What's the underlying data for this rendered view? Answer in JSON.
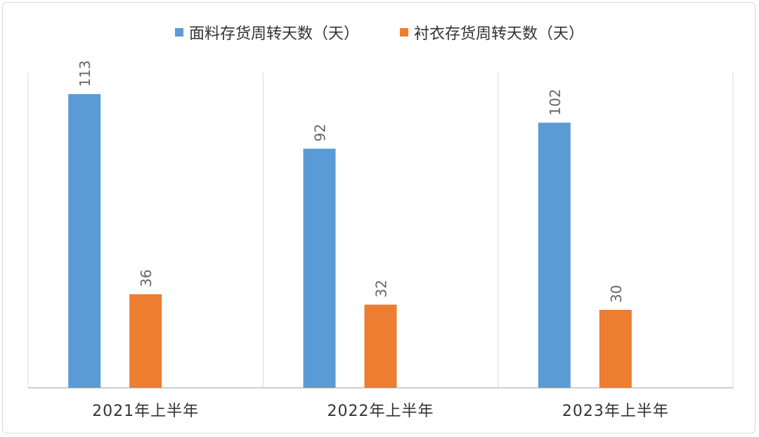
{
  "colors": {
    "series_1": "#5b9bd5",
    "series_2": "#ed7d31",
    "grid": "#d9d9d9",
    "axis": "#bfbfbf",
    "text": "#333333",
    "label": "#666666"
  },
  "chart_data": {
    "type": "bar",
    "categories": [
      "2021年上半年",
      "2022年上半年",
      "2023年上半年"
    ],
    "series": [
      {
        "name": "面料存货周转天数（天）",
        "values": [
          113,
          92,
          102
        ]
      },
      {
        "name": "衬衣存货周转天数（天）",
        "values": [
          36,
          32,
          30
        ]
      }
    ],
    "ylim": [
      0,
      120
    ],
    "grid": "vertical category separators",
    "legend_position": "top-center",
    "data_labels": true
  }
}
